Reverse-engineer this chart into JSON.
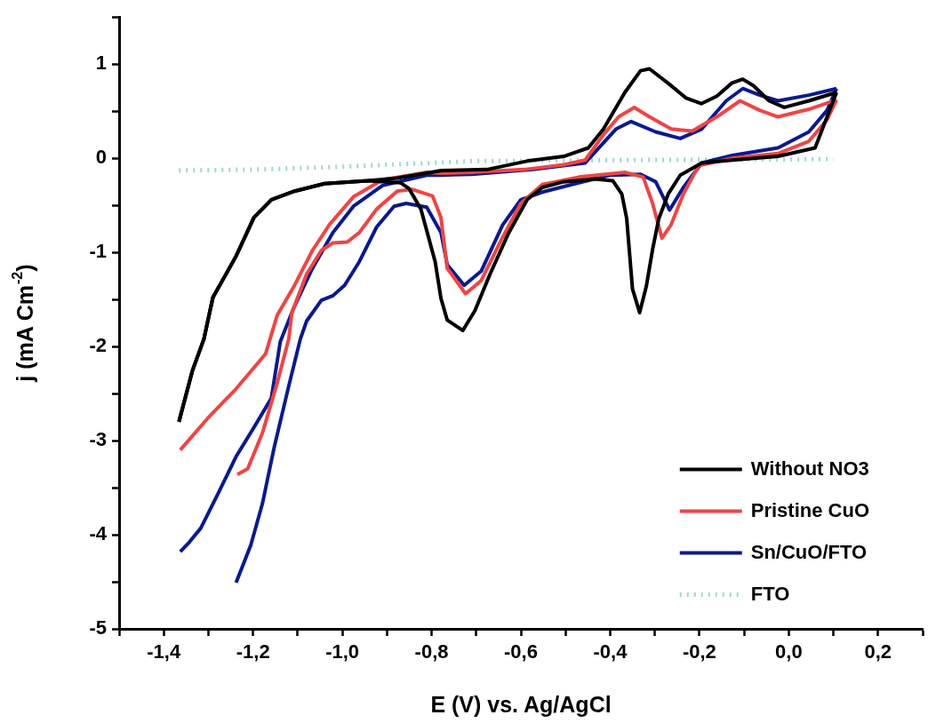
{
  "chart_data": {
    "type": "line",
    "xlabel": "E (V) vs. Ag/AgCl",
    "ylabel": "j (mA Cm$^{-2}$)",
    "xlim": [
      -1.5,
      0.3
    ],
    "ylim": [
      -5,
      1.5
    ],
    "xticks": [
      {
        "value": -1.5,
        "label": null
      },
      {
        "value": -1.4,
        "label": "-1,4"
      },
      {
        "value": -1.3,
        "label": null
      },
      {
        "value": -1.2,
        "label": "-1,2"
      },
      {
        "value": -1.1,
        "label": null
      },
      {
        "value": -1.0,
        "label": "-1,0"
      },
      {
        "value": -0.9,
        "label": null
      },
      {
        "value": -0.8,
        "label": "-0,8"
      },
      {
        "value": -0.7,
        "label": null
      },
      {
        "value": -0.6,
        "label": "-0,6"
      },
      {
        "value": -0.5,
        "label": null
      },
      {
        "value": -0.4,
        "label": "-0,4"
      },
      {
        "value": -0.3,
        "label": null
      },
      {
        "value": -0.2,
        "label": "-0,2"
      },
      {
        "value": -0.1,
        "label": null
      },
      {
        "value": 0,
        "label": "0,0"
      },
      {
        "value": 0.1,
        "label": null
      },
      {
        "value": 0.2,
        "label": "0,2"
      },
      {
        "value": 0.3,
        "label": null
      }
    ],
    "yticks": [
      -5,
      {
        "value": -4.5,
        "label": null
      },
      -4,
      {
        "value": -3.5,
        "label": null
      },
      -3,
      {
        "value": -2.5,
        "label": null
      },
      -2,
      {
        "value": -1.5,
        "label": null
      },
      -1,
      {
        "value": -0.5,
        "label": null
      },
      0,
      {
        "value": 0.5,
        "label": null
      },
      1,
      {
        "value": 1.5,
        "label": null
      }
    ],
    "grid": false,
    "legend": "bottom right",
    "marker": "none",
    "line_style": "solid",
    "series": [
      {
        "name": "Without NO3",
        "color": "#000000",
        "x": [
          0.107,
          0.059,
          -0.024,
          -0.127,
          -0.195,
          -0.243,
          -0.27,
          -0.291,
          -0.305,
          -0.319,
          -0.334,
          -0.35,
          -0.363,
          -0.374,
          -0.394,
          -0.435,
          -0.504,
          -0.552,
          -0.586,
          -0.628,
          -0.669,
          -0.703,
          -0.73,
          -0.765,
          -0.779,
          -0.792,
          -0.824,
          -0.851,
          -0.87,
          -0.943,
          -1.04,
          -1.107,
          -1.159,
          -1.198,
          -1.238,
          -1.29,
          -1.31,
          -1.336,
          -1.366
        ],
        "values": [
          0.7,
          0.11,
          0.02,
          -0.02,
          -0.05,
          -0.18,
          -0.38,
          -0.64,
          -0.97,
          -1.36,
          -1.64,
          -1.39,
          -0.64,
          -0.38,
          -0.24,
          -0.22,
          -0.25,
          -0.31,
          -0.44,
          -0.8,
          -1.23,
          -1.62,
          -1.83,
          -1.72,
          -1.49,
          -1.1,
          -0.54,
          -0.32,
          -0.26,
          -0.24,
          -0.27,
          -0.35,
          -0.44,
          -0.63,
          -1.04,
          -1.48,
          -1.92,
          -2.26,
          -2.8
        ]
      },
      {
        "color": "#000000",
        "x": [
          -1.366,
          -1.336,
          -1.31,
          -1.29,
          -1.238,
          -1.198,
          -1.159,
          -1.107,
          -1.04,
          -0.943,
          -0.877,
          -0.778,
          -0.676,
          -0.586,
          -0.504,
          -0.449,
          -0.415,
          -0.367,
          -0.332,
          -0.312,
          -0.271,
          -0.23,
          -0.196,
          -0.161,
          -0.127,
          -0.103,
          -0.079,
          -0.044,
          -0.01,
          0.045,
          0.107
        ],
        "values": [
          -2.8,
          -2.26,
          -1.92,
          -1.48,
          -1.04,
          -0.63,
          -0.44,
          -0.35,
          -0.27,
          -0.24,
          -0.21,
          -0.13,
          -0.12,
          -0.03,
          0.02,
          0.11,
          0.31,
          0.7,
          0.93,
          0.95,
          0.8,
          0.64,
          0.58,
          0.66,
          0.8,
          0.84,
          0.77,
          0.61,
          0.54,
          0.61,
          0.7
        ]
      },
      {
        "name": "Pristine CuO",
        "color": "#f04444",
        "x": [
          -1.235,
          -1.212,
          -1.179,
          -1.146,
          -1.12,
          -1.113,
          -1.08,
          -1.047,
          -1.021,
          -0.989,
          -0.962,
          -0.923,
          -0.877,
          -0.844,
          -0.798,
          -0.779,
          -0.765,
          -0.724,
          -0.689,
          -0.641,
          -0.6,
          -0.552,
          -0.47,
          -0.367,
          -0.326,
          -0.305,
          -0.284,
          -0.264,
          -0.236,
          -0.202,
          -0.127,
          -0.024,
          0.045,
          0.086,
          0.107
        ],
        "values": [
          -3.36,
          -3.3,
          -2.92,
          -2.39,
          -1.92,
          -1.64,
          -1.23,
          -0.98,
          -0.9,
          -0.89,
          -0.79,
          -0.54,
          -0.35,
          -0.33,
          -0.4,
          -0.63,
          -1.17,
          -1.44,
          -1.3,
          -0.84,
          -0.48,
          -0.28,
          -0.2,
          -0.15,
          -0.2,
          -0.48,
          -0.85,
          -0.71,
          -0.38,
          -0.08,
          0,
          0.05,
          0.18,
          0.41,
          0.62
        ]
      },
      {
        "color": "#f04444",
        "x": [
          0.107,
          0.045,
          -0.024,
          -0.065,
          -0.109,
          -0.161,
          -0.216,
          -0.263,
          -0.312,
          -0.346,
          -0.381,
          -0.415,
          -0.456,
          -0.504,
          -0.593,
          -0.71,
          -0.779,
          -0.811,
          -0.91,
          -0.975,
          -1.028,
          -1.067,
          -1.107,
          -1.146,
          -1.172,
          -1.238,
          -1.303,
          -1.363
        ],
        "values": [
          0.62,
          0.52,
          0.44,
          0.51,
          0.61,
          0.44,
          0.29,
          0.31,
          0.44,
          0.54,
          0.44,
          0.25,
          -0.02,
          -0.07,
          -0.12,
          -0.15,
          -0.16,
          -0.15,
          -0.23,
          -0.41,
          -0.7,
          -0.98,
          -1.35,
          -1.67,
          -2.08,
          -2.45,
          -2.77,
          -3.1
        ]
      },
      {
        "name": "Sn/CuO/FTO",
        "color": "#0a1a8c",
        "x": [
          -1.238,
          -1.205,
          -1.179,
          -1.153,
          -1.12,
          -1.094,
          -1.08,
          -1.047,
          -1.021,
          -0.995,
          -0.962,
          -0.923,
          -0.884,
          -0.857,
          -0.811,
          -0.779,
          -0.765,
          -0.727,
          -0.689,
          -0.641,
          -0.6,
          -0.552,
          -0.47,
          -0.401,
          -0.332,
          -0.298,
          -0.267,
          -0.236,
          -0.195,
          -0.127,
          -0.024,
          0.045,
          0.086,
          0.107
        ],
        "values": [
          -4.51,
          -4.11,
          -3.67,
          -3.08,
          -2.42,
          -1.92,
          -1.73,
          -1.51,
          -1.46,
          -1.35,
          -1.1,
          -0.73,
          -0.51,
          -0.48,
          -0.52,
          -0.79,
          -1.13,
          -1.35,
          -1.2,
          -0.71,
          -0.44,
          -0.36,
          -0.26,
          -0.18,
          -0.17,
          -0.25,
          -0.55,
          -0.31,
          -0.05,
          0.03,
          0.11,
          0.28,
          0.51,
          0.74
        ]
      },
      {
        "color": "#0a1a8c",
        "x": [
          0.107,
          0.045,
          -0.024,
          -0.065,
          -0.103,
          -0.14,
          -0.195,
          -0.243,
          -0.298,
          -0.353,
          -0.387,
          -0.456,
          -0.573,
          -0.71,
          -0.779,
          -0.811,
          -0.91,
          -0.975,
          -1.021,
          -1.067,
          -1.107,
          -1.139,
          -1.159,
          -1.198,
          -1.238,
          -1.277,
          -1.317,
          -1.343,
          -1.363
        ],
        "values": [
          0.74,
          0.67,
          0.61,
          0.67,
          0.74,
          0.61,
          0.31,
          0.21,
          0.28,
          0.39,
          0.31,
          -0.05,
          -0.12,
          -0.17,
          -0.18,
          -0.18,
          -0.29,
          -0.51,
          -0.79,
          -1.17,
          -1.57,
          -1.95,
          -2.55,
          -2.86,
          -3.17,
          -3.55,
          -3.93,
          -4.08,
          -4.18
        ]
      },
      {
        "name": "FTO",
        "color": "#9fd8cc",
        "line_style": "dotted",
        "x": [
          -1.366,
          -1.2,
          -1.0,
          -0.85,
          -0.7,
          -0.4,
          0.1
        ],
        "values": [
          -0.13,
          -0.12,
          -0.09,
          -0.06,
          -0.03,
          -0.02,
          -0.01
        ]
      }
    ]
  }
}
